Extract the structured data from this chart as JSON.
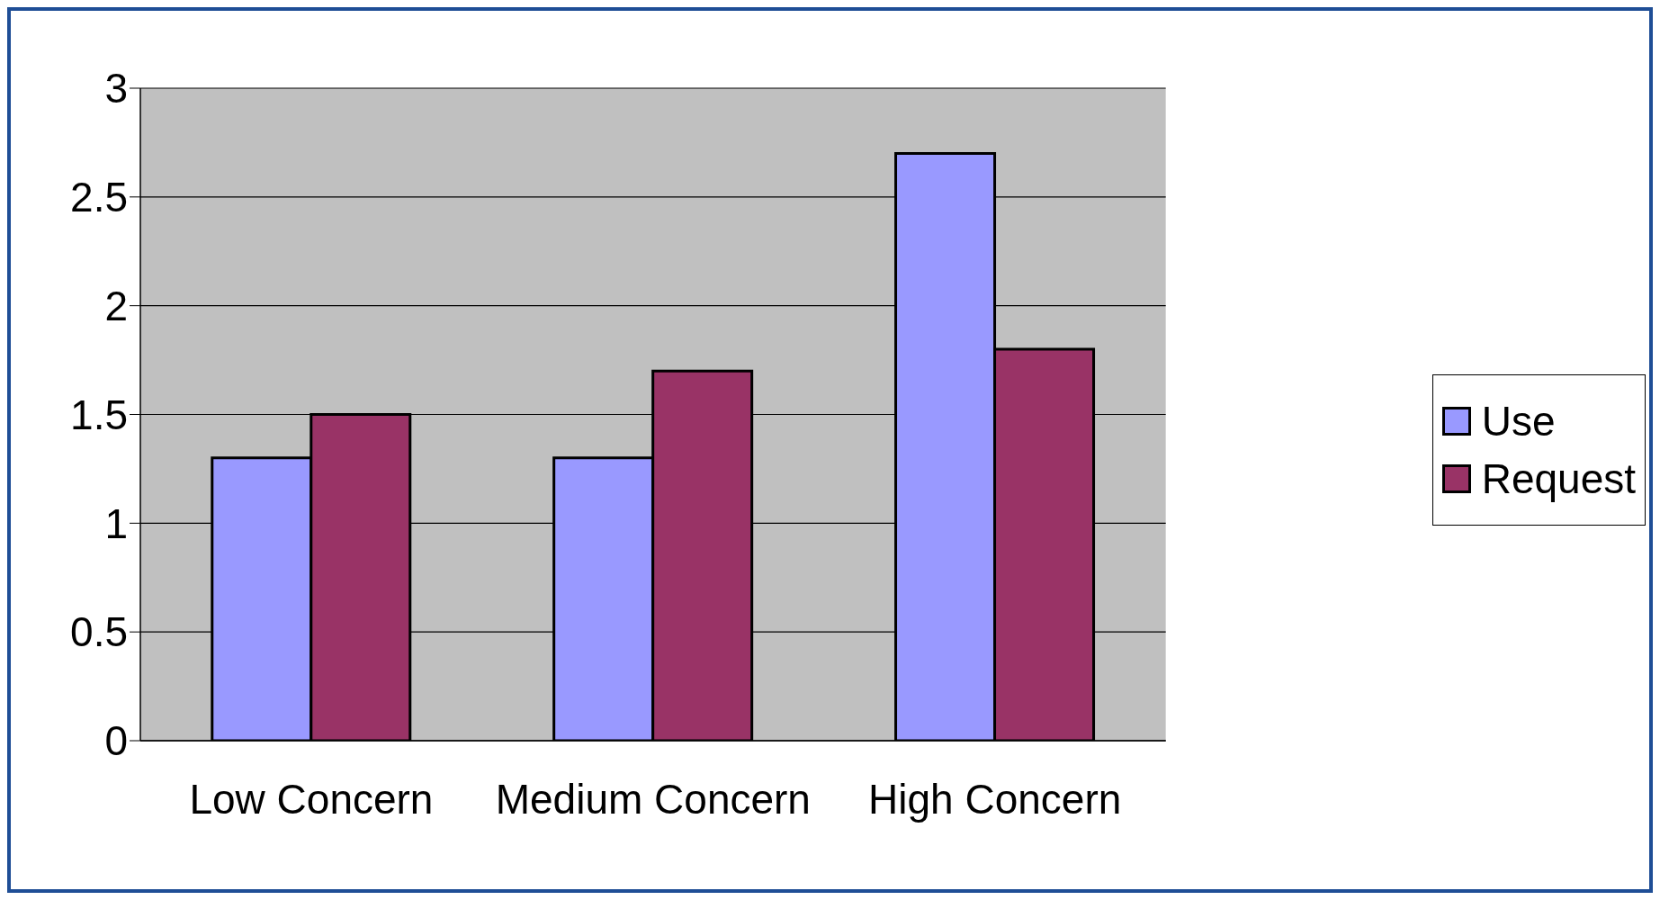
{
  "chart_data": {
    "type": "bar",
    "categories": [
      "Low Concern",
      "Medium Concern",
      "High Concern"
    ],
    "series": [
      {
        "name": "Use",
        "color": "#9999ff",
        "values": [
          1.3,
          1.3,
          2.7
        ]
      },
      {
        "name": "Request",
        "color": "#993366",
        "values": [
          1.5,
          1.7,
          1.8
        ]
      }
    ],
    "ylim": [
      0,
      3
    ],
    "yticks": [
      0,
      0.5,
      1,
      1.5,
      2,
      2.5,
      3
    ],
    "grid": "y",
    "legend": "right"
  }
}
